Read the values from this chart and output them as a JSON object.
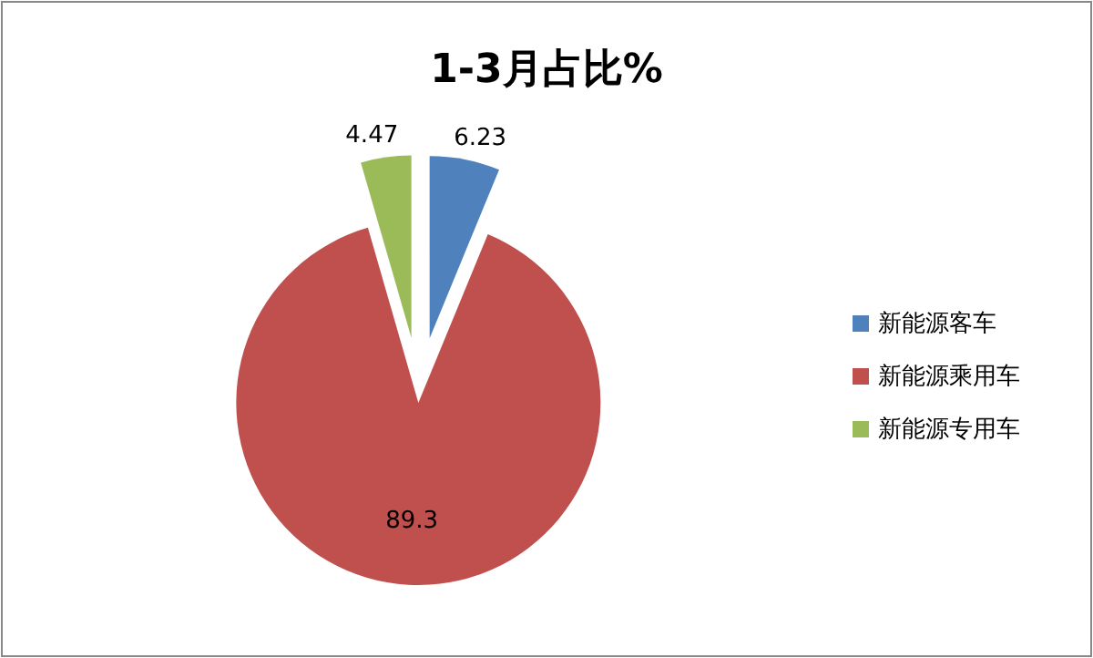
{
  "chart_data": {
    "type": "pie",
    "title": "1-3月占比%",
    "categories": [
      "新能源客车",
      "新能源乘用车",
      "新能源专用车"
    ],
    "values": [
      6.23,
      89.3,
      4.47
    ],
    "colors": [
      "#4f81bd",
      "#c0504d",
      "#9bbb59"
    ],
    "data_labels": true,
    "legend": "right"
  }
}
